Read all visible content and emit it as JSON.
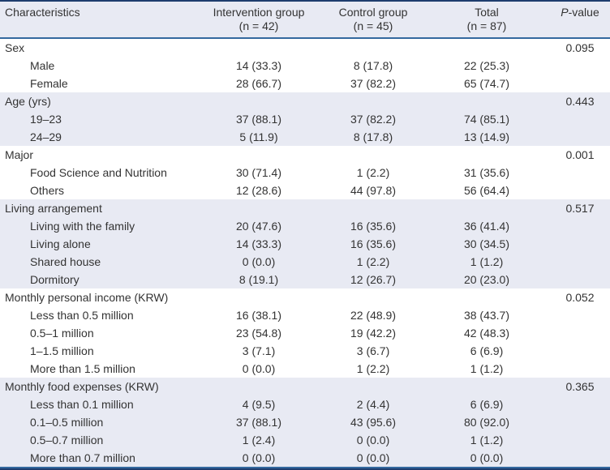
{
  "colors": {
    "band": "#e8eaf3",
    "frame_dark": "#1e3d6e",
    "rule_blue": "#34699f",
    "text": "#333333",
    "background": "#ffffff"
  },
  "header": {
    "characteristics": "Characteristics",
    "groups": [
      {
        "line1": "Intervention group",
        "line2": "(n = 42)"
      },
      {
        "line1": "Control group",
        "line2": "(n = 45)"
      },
      {
        "line1": "Total",
        "line2": "(n = 87)"
      }
    ],
    "p_italic": "P",
    "p_rest": "-value"
  },
  "sections": [
    {
      "label": "Sex",
      "p": "0.095",
      "shaded": false,
      "rows": [
        {
          "label": "Male",
          "values": [
            "14 (33.3)",
            "8 (17.8)",
            "22 (25.3)"
          ]
        },
        {
          "label": "Female",
          "values": [
            "28 (66.7)",
            "37 (82.2)",
            "65 (74.7)"
          ]
        }
      ]
    },
    {
      "label": "Age (yrs)",
      "p": "0.443",
      "shaded": true,
      "rows": [
        {
          "label": "19–23",
          "values": [
            "37 (88.1)",
            "37 (82.2)",
            "74 (85.1)"
          ]
        },
        {
          "label": "24–29",
          "values": [
            "5 (11.9)",
            "8 (17.8)",
            "13 (14.9)"
          ]
        }
      ]
    },
    {
      "label": "Major",
      "p": "0.001",
      "shaded": false,
      "rows": [
        {
          "label": "Food Science and Nutrition",
          "values": [
            "30 (71.4)",
            "1 (2.2)",
            "31 (35.6)"
          ]
        },
        {
          "label": "Others",
          "values": [
            "12 (28.6)",
            "44 (97.8)",
            "56 (64.4)"
          ]
        }
      ]
    },
    {
      "label": "Living arrangement",
      "p": "0.517",
      "shaded": true,
      "rows": [
        {
          "label": "Living with the family",
          "values": [
            "20 (47.6)",
            "16 (35.6)",
            "36 (41.4)"
          ]
        },
        {
          "label": "Living alone",
          "values": [
            "14 (33.3)",
            "16 (35.6)",
            "30 (34.5)"
          ]
        },
        {
          "label": "Shared house",
          "values": [
            "0 (0.0)",
            "1 (2.2)",
            "1 (1.2)"
          ]
        },
        {
          "label": "Dormitory",
          "values": [
            "8 (19.1)",
            "12 (26.7)",
            "20 (23.0)"
          ]
        }
      ]
    },
    {
      "label": "Monthly personal income (KRW)",
      "p": "0.052",
      "shaded": false,
      "rows": [
        {
          "label": "Less than 0.5 million",
          "values": [
            "16 (38.1)",
            "22 (48.9)",
            "38 (43.7)"
          ]
        },
        {
          "label": "0.5–1 million",
          "values": [
            "23 (54.8)",
            "19 (42.2)",
            "42 (48.3)"
          ]
        },
        {
          "label": "1–1.5 million",
          "values": [
            "3 (7.1)",
            "3 (6.7)",
            "6 (6.9)"
          ]
        },
        {
          "label": "More than 1.5 million",
          "values": [
            "0 (0.0)",
            "1 (2.2)",
            "1 (1.2)"
          ]
        }
      ]
    },
    {
      "label": "Monthly food expenses (KRW)",
      "p": "0.365",
      "shaded": true,
      "rows": [
        {
          "label": "Less than 0.1 million",
          "values": [
            "4 (9.5)",
            "2 (4.4)",
            "6 (6.9)"
          ]
        },
        {
          "label": "0.1–0.5 million",
          "values": [
            "37 (88.1)",
            "43 (95.6)",
            "80 (92.0)"
          ]
        },
        {
          "label": "0.5–0.7 million",
          "values": [
            "1 (2.4)",
            "0 (0.0)",
            "1 (1.2)"
          ]
        },
        {
          "label": "More than 0.7 million",
          "values": [
            "0 (0.0)",
            "0 (0.0)",
            "0 (0.0)"
          ]
        }
      ]
    }
  ]
}
